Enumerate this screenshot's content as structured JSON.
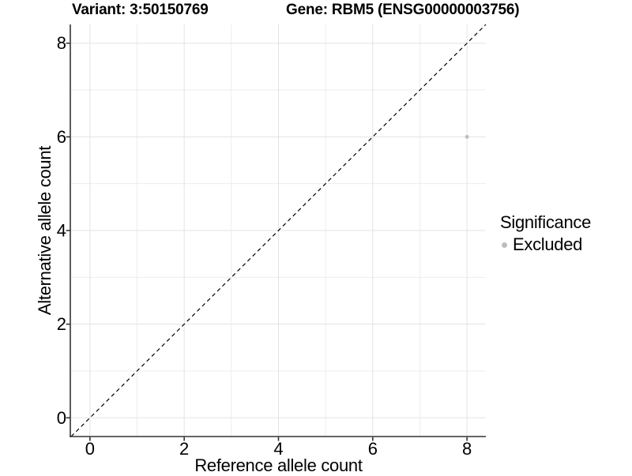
{
  "chart_data": {
    "type": "scatter",
    "titles": [
      "Variant: 3:50150769",
      "Gene: RBM5 (ENSG00000003756)"
    ],
    "xlabel": "Reference allele count",
    "ylabel": "Alternative allele count",
    "xlim": [
      -0.4,
      8.4
    ],
    "ylim": [
      -0.4,
      8.4
    ],
    "x_ticks": [
      0,
      2,
      4,
      6,
      8
    ],
    "y_ticks": [
      0,
      2,
      4,
      6,
      8
    ],
    "x_minor_gridlines": [
      1,
      3,
      5,
      7
    ],
    "y_minor_gridlines": [
      1,
      3,
      5,
      7
    ],
    "grid": true,
    "legend": {
      "title": "Significance",
      "position": "right"
    },
    "series": [
      {
        "name": "Excluded",
        "color": "#bdbdbd",
        "points": [
          {
            "x": 8,
            "y": 6
          }
        ]
      }
    ],
    "reference_line": {
      "kind": "identity_y_equals_x",
      "style": "dashed",
      "color": "#000000",
      "from": [
        -0.4,
        -0.4
      ],
      "to": [
        8.4,
        8.4
      ]
    }
  },
  "colors": {
    "background": "#ffffff",
    "gridline_major": "#e3e3e3",
    "gridline_minor": "#ededed",
    "axis_line": "#333333",
    "tick_mark": "#333333",
    "point": "#bdbdbd",
    "text": "#000000"
  }
}
